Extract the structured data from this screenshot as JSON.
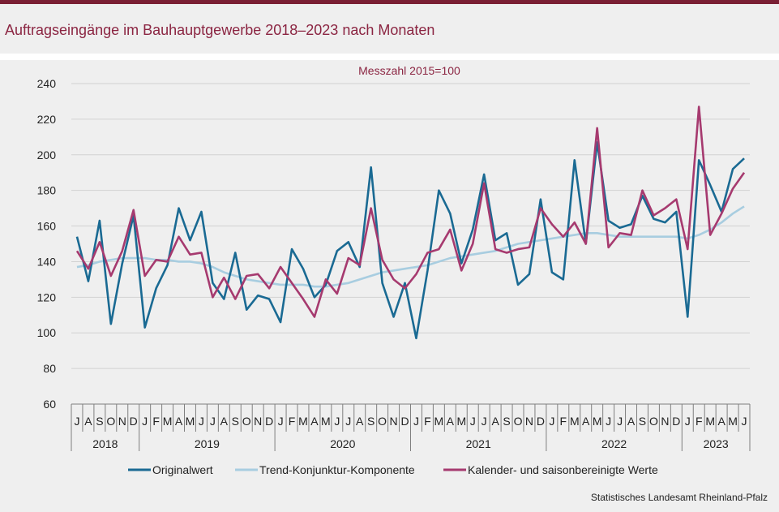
{
  "header": {
    "title": "Auftragseingänge im Bauhauptgewerbe 2018–2023 nach Monaten"
  },
  "footer": {
    "source": "Statistisches Landesamt Rheinland-Pfalz"
  },
  "chart_data": {
    "type": "line",
    "subtitle": "Messzahl 2015=100",
    "ylim": [
      60,
      240
    ],
    "yticks": [
      60,
      80,
      100,
      120,
      140,
      160,
      180,
      200,
      220,
      240
    ],
    "grid": true,
    "legend_position": "bottom",
    "month_labels": [
      "J",
      "A",
      "S",
      "O",
      "N",
      "D",
      "J",
      "F",
      "M",
      "A",
      "M",
      "J",
      "J",
      "A",
      "S",
      "O",
      "N",
      "D",
      "J",
      "F",
      "M",
      "A",
      "M",
      "J",
      "J",
      "A",
      "S",
      "O",
      "N",
      "D",
      "J",
      "F",
      "M",
      "A",
      "M",
      "J",
      "J",
      "A",
      "S",
      "O",
      "N",
      "D",
      "J",
      "F",
      "M",
      "A",
      "M",
      "J",
      "J",
      "A",
      "S",
      "O",
      "N",
      "D",
      "J",
      "F",
      "M",
      "A",
      "M",
      "J"
    ],
    "years": [
      {
        "label": "2018",
        "months": 6
      },
      {
        "label": "2019",
        "months": 12
      },
      {
        "label": "2020",
        "months": 12
      },
      {
        "label": "2021",
        "months": 12
      },
      {
        "label": "2022",
        "months": 12
      },
      {
        "label": "2023",
        "months": 6
      }
    ],
    "series": [
      {
        "name": "Originalwert",
        "color": "#1a6a93",
        "values": [
          154,
          129,
          163,
          105,
          139,
          166,
          103,
          125,
          138,
          170,
          152,
          168,
          128,
          119,
          145,
          113,
          121,
          119,
          106,
          147,
          136,
          120,
          127,
          146,
          151,
          137,
          193,
          128,
          109,
          128,
          97,
          135,
          180,
          167,
          139,
          158,
          189,
          152,
          156,
          127,
          133,
          175,
          134,
          130,
          197,
          150,
          207,
          163,
          159,
          161,
          177,
          164,
          162,
          168,
          109,
          197,
          183,
          168,
          192,
          198
        ]
      },
      {
        "name": "Trend-Konjunktur-Komponente",
        "color": "#a8cde0",
        "values": [
          137,
          138,
          140,
          141,
          142,
          142,
          142,
          141,
          141,
          140,
          140,
          139,
          137,
          134,
          132,
          130,
          129,
          128,
          127,
          127,
          127,
          126,
          126,
          127,
          128,
          130,
          132,
          134,
          135,
          136,
          137,
          138,
          140,
          142,
          143,
          144,
          145,
          146,
          148,
          150,
          151,
          152,
          153,
          154,
          155,
          156,
          156,
          155,
          154,
          154,
          154,
          154,
          154,
          154,
          153,
          155,
          158,
          162,
          167,
          171
        ]
      },
      {
        "name": "Kalender- und saisonbereinigte Werte",
        "color": "#a63a6f",
        "values": [
          146,
          136,
          151,
          132,
          146,
          169,
          132,
          141,
          140,
          154,
          144,
          145,
          120,
          131,
          119,
          132,
          133,
          125,
          137,
          128,
          119,
          109,
          130,
          122,
          142,
          138,
          170,
          141,
          130,
          125,
          133,
          145,
          147,
          158,
          135,
          150,
          184,
          147,
          145,
          147,
          148,
          170,
          161,
          154,
          162,
          150,
          215,
          148,
          156,
          155,
          180,
          166,
          170,
          175,
          147,
          227,
          155,
          167,
          181,
          190
        ]
      }
    ]
  }
}
